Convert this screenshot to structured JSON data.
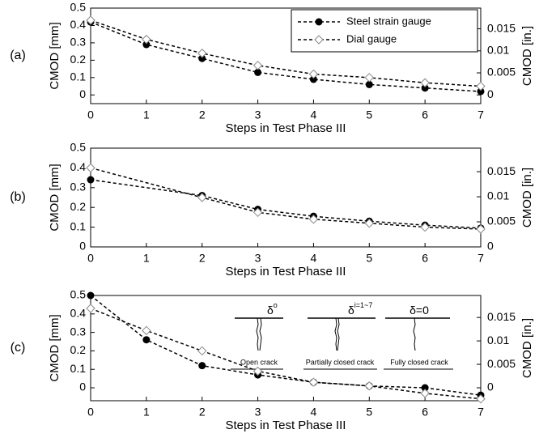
{
  "chart_data": [
    {
      "type": "line",
      "panel_label": "(a)",
      "xlabel": "Steps in Test Phase III",
      "ylabel": "CMOD [mm]",
      "y2label": "CMOD [in.]",
      "x": [
        0,
        1,
        2,
        3,
        4,
        5,
        6,
        7
      ],
      "xlim": [
        0,
        7
      ],
      "xticks": [
        0,
        1,
        2,
        3,
        4,
        5,
        6,
        7
      ],
      "ylim": [
        -0.05,
        0.5
      ],
      "yticks": [
        0,
        0.1,
        0.2,
        0.3,
        0.4,
        0.5
      ],
      "y2lim": [
        -0.00197,
        0.01969
      ],
      "y2ticks": [
        0,
        0.005,
        0.01,
        0.015
      ],
      "legend": "upper right",
      "series": [
        {
          "name": "Steel strain gauge",
          "color": "#000000",
          "marker": "circle",
          "values": [
            0.42,
            0.29,
            0.21,
            0.13,
            0.09,
            0.06,
            0.04,
            0.02
          ]
        },
        {
          "name": "Dial gauge",
          "color": "#888888",
          "marker": "diamond",
          "values": [
            0.43,
            0.32,
            0.24,
            0.17,
            0.12,
            0.1,
            0.07,
            0.05
          ]
        }
      ]
    },
    {
      "type": "line",
      "panel_label": "(b)",
      "xlabel": "Steps in Test Phase III",
      "ylabel": "CMOD [mm]",
      "y2label": "CMOD [in.]",
      "x": [
        0,
        2,
        3,
        4,
        5,
        6,
        7
      ],
      "xlim": [
        0,
        7
      ],
      "xticks": [
        0,
        1,
        2,
        3,
        4,
        5,
        6,
        7
      ],
      "ylim": [
        0,
        0.5
      ],
      "yticks": [
        0,
        0.1,
        0.2,
        0.3,
        0.4,
        0.5
      ],
      "y2lim": [
        0,
        0.01969
      ],
      "y2ticks": [
        0,
        0.005,
        0.01,
        0.015
      ],
      "series": [
        {
          "color": "#000000",
          "marker": "circle",
          "values": [
            0.34,
            0.26,
            0.19,
            0.155,
            0.13,
            0.11,
            0.095
          ]
        },
        {
          "color": "#888888",
          "marker": "diamond",
          "values": [
            0.4,
            0.25,
            0.175,
            0.14,
            0.12,
            0.1,
            0.09
          ]
        }
      ]
    },
    {
      "type": "line",
      "panel_label": "(c)",
      "xlabel": "Steps in Test Phase III",
      "ylabel": "CMOD [mm]",
      "y2label": "CMOD [in.]",
      "x": [
        0,
        1,
        2,
        3,
        4,
        5,
        6,
        7
      ],
      "xlim": [
        0,
        7
      ],
      "xticks": [
        0,
        1,
        2,
        3,
        4,
        5,
        6,
        7
      ],
      "ylim": [
        -0.07,
        0.5
      ],
      "yticks": [
        0,
        0.1,
        0.2,
        0.3,
        0.4,
        0.5
      ],
      "y2lim": [
        -0.00276,
        0.01969
      ],
      "y2ticks": [
        0,
        0.005,
        0.01,
        0.015
      ],
      "series": [
        {
          "color": "#000000",
          "marker": "circle",
          "values": [
            0.5,
            0.26,
            0.12,
            0.07,
            0.03,
            0.01,
            0.0,
            -0.04
          ]
        },
        {
          "color": "#888888",
          "marker": "diamond",
          "values": [
            0.43,
            0.31,
            0.2,
            0.09,
            0.03,
            0.01,
            -0.03,
            -0.06
          ]
        }
      ],
      "annotations": [
        {
          "label": "Open crack",
          "symbol": "δ",
          "sup": "o"
        },
        {
          "label": "Partially closed crack",
          "symbol": "δ",
          "sup": "i=1~7"
        },
        {
          "label": "Fully closed crack",
          "symbol": "δ=0"
        }
      ]
    }
  ]
}
